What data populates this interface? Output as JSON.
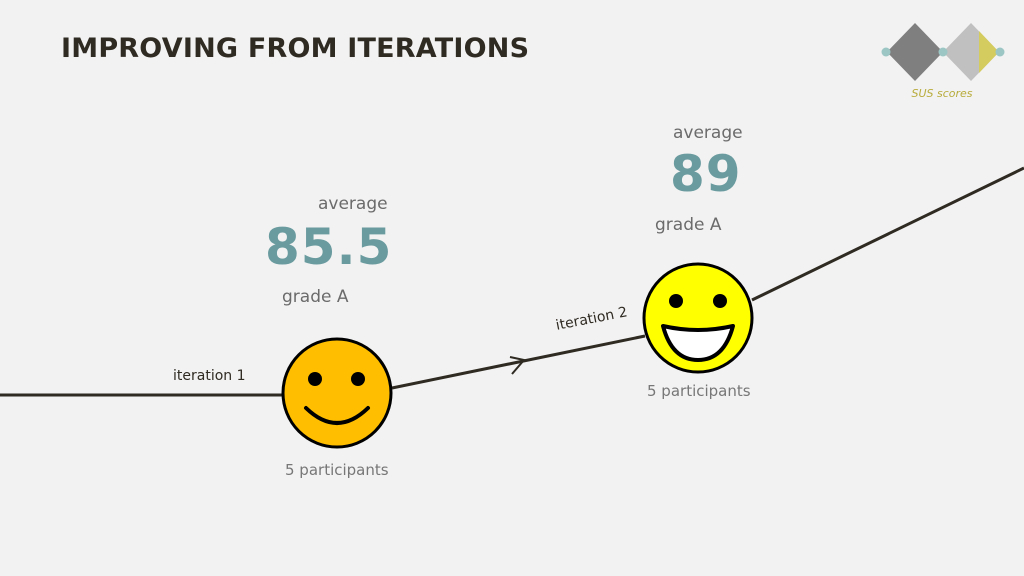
{
  "slide": {
    "title": "IMPROVING FROM ITERATIONS",
    "logo_caption": "SUS scores"
  },
  "iterations": [
    {
      "label": "iteration 1",
      "average_label": "average",
      "score": "85.5",
      "grade": "grade A",
      "participants": "5 participants",
      "face": "smiling-face-icon",
      "face_color": "#ffbf00"
    },
    {
      "label": "iteration 2",
      "average_label": "average",
      "score": "89",
      "grade": "grade A",
      "participants": "5 participants",
      "face": "grinning-face-icon",
      "face_color": "#ffff00"
    }
  ],
  "colors": {
    "title": "#2f2a22",
    "score": "#6a9b9f",
    "line": "#2f2a22",
    "logo_dark": "#7f7f7f",
    "logo_light": "#c0c0c0",
    "logo_accent": "#d4cc5e",
    "logo_dots": "#9cc6c4"
  }
}
